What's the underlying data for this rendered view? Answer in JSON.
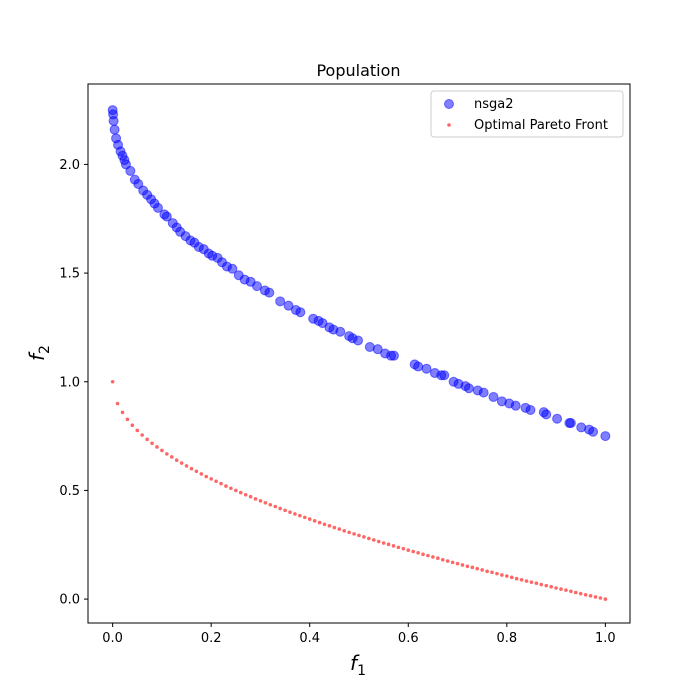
{
  "chart_data": {
    "type": "scatter",
    "title": "Population",
    "xlabel": "f",
    "xlabel_sub": "1",
    "ylabel": "f",
    "ylabel_sub": "2",
    "xlim": [
      -0.05,
      1.05
    ],
    "ylim": [
      -0.11,
      2.37
    ],
    "xticks": [
      0.0,
      0.2,
      0.4,
      0.6,
      0.8,
      1.0
    ],
    "xtick_labels": [
      "0.0",
      "0.2",
      "0.4",
      "0.6",
      "0.8",
      "1.0"
    ],
    "yticks": [
      0.0,
      0.5,
      1.0,
      1.5,
      2.0
    ],
    "ytick_labels": [
      "0.0",
      "0.5",
      "1.0",
      "1.5",
      "2.0"
    ],
    "grid": false,
    "legend_position": "top-right",
    "series": [
      {
        "name": "nsga2",
        "color": "#0000ff",
        "alpha": 0.5,
        "x": [
          0.0,
          0.001,
          0.002,
          0.004,
          0.007,
          0.011,
          0.016,
          0.02,
          0.024,
          0.027,
          0.036,
          0.045,
          0.052,
          0.062,
          0.07,
          0.078,
          0.085,
          0.092,
          0.105,
          0.11,
          0.122,
          0.13,
          0.137,
          0.148,
          0.158,
          0.166,
          0.175,
          0.185,
          0.195,
          0.202,
          0.213,
          0.222,
          0.232,
          0.243,
          0.256,
          0.268,
          0.28,
          0.293,
          0.309,
          0.318,
          0.34,
          0.357,
          0.372,
          0.381,
          0.407,
          0.418,
          0.426,
          0.44,
          0.448,
          0.462,
          0.48,
          0.487,
          0.498,
          0.522,
          0.538,
          0.553,
          0.565,
          0.571,
          0.613,
          0.62,
          0.637,
          0.654,
          0.667,
          0.673,
          0.692,
          0.702,
          0.716,
          0.723,
          0.741,
          0.753,
          0.773,
          0.79,
          0.805,
          0.818,
          0.838,
          0.848,
          0.875,
          0.88,
          0.902,
          0.927,
          0.93,
          0.951,
          0.967,
          0.975,
          1.0
        ],
        "y": [
          2.25,
          2.23,
          2.2,
          2.16,
          2.12,
          2.09,
          2.06,
          2.04,
          2.02,
          2.0,
          1.97,
          1.93,
          1.91,
          1.88,
          1.86,
          1.84,
          1.82,
          1.8,
          1.77,
          1.76,
          1.73,
          1.71,
          1.69,
          1.67,
          1.65,
          1.64,
          1.62,
          1.61,
          1.59,
          1.58,
          1.57,
          1.55,
          1.53,
          1.52,
          1.49,
          1.47,
          1.46,
          1.44,
          1.42,
          1.41,
          1.37,
          1.35,
          1.33,
          1.32,
          1.29,
          1.28,
          1.27,
          1.25,
          1.24,
          1.23,
          1.21,
          1.2,
          1.19,
          1.16,
          1.15,
          1.13,
          1.12,
          1.12,
          1.08,
          1.07,
          1.06,
          1.04,
          1.03,
          1.03,
          1.0,
          0.99,
          0.98,
          0.97,
          0.96,
          0.95,
          0.93,
          0.91,
          0.9,
          0.89,
          0.88,
          0.87,
          0.86,
          0.85,
          0.83,
          0.81,
          0.81,
          0.79,
          0.78,
          0.77,
          0.75
        ]
      },
      {
        "name": "Optimal Pareto Front",
        "color": "#ff0000",
        "alpha": 0.6,
        "x": [
          0.0,
          0.01,
          0.02,
          0.03,
          0.04,
          0.05,
          0.06,
          0.07,
          0.08,
          0.09,
          0.1,
          0.11,
          0.12,
          0.13,
          0.14,
          0.15,
          0.16,
          0.17,
          0.18,
          0.19,
          0.2,
          0.21,
          0.22,
          0.23,
          0.24,
          0.25,
          0.26,
          0.27,
          0.28,
          0.29,
          0.3,
          0.31,
          0.32,
          0.33,
          0.34,
          0.35,
          0.36,
          0.37,
          0.38,
          0.39,
          0.4,
          0.41,
          0.42,
          0.43,
          0.44,
          0.45,
          0.46,
          0.47,
          0.48,
          0.49,
          0.5,
          0.51,
          0.52,
          0.53,
          0.54,
          0.55,
          0.56,
          0.57,
          0.58,
          0.59,
          0.6,
          0.61,
          0.62,
          0.63,
          0.64,
          0.65,
          0.66,
          0.67,
          0.68,
          0.69,
          0.7,
          0.71,
          0.72,
          0.73,
          0.74,
          0.75,
          0.76,
          0.77,
          0.78,
          0.79,
          0.8,
          0.81,
          0.82,
          0.83,
          0.84,
          0.85,
          0.86,
          0.87,
          0.88,
          0.89,
          0.9,
          0.91,
          0.92,
          0.93,
          0.94,
          0.95,
          0.96,
          0.97,
          0.98,
          0.99,
          1.0
        ],
        "y": [
          1.0,
          0.9,
          0.859,
          0.827,
          0.8,
          0.776,
          0.755,
          0.735,
          0.717,
          0.7,
          0.684,
          0.668,
          0.654,
          0.639,
          0.626,
          0.613,
          0.6,
          0.588,
          0.576,
          0.564,
          0.553,
          0.542,
          0.531,
          0.52,
          0.51,
          0.5,
          0.49,
          0.48,
          0.471,
          0.461,
          0.452,
          0.443,
          0.434,
          0.426,
          0.417,
          0.408,
          0.4,
          0.392,
          0.384,
          0.376,
          0.368,
          0.36,
          0.352,
          0.344,
          0.337,
          0.329,
          0.322,
          0.314,
          0.307,
          0.3,
          0.293,
          0.286,
          0.279,
          0.272,
          0.265,
          0.258,
          0.252,
          0.245,
          0.238,
          0.232,
          0.225,
          0.219,
          0.213,
          0.206,
          0.2,
          0.194,
          0.188,
          0.181,
          0.175,
          0.169,
          0.163,
          0.157,
          0.151,
          0.146,
          0.14,
          0.134,
          0.128,
          0.123,
          0.117,
          0.111,
          0.106,
          0.1,
          0.094,
          0.089,
          0.083,
          0.078,
          0.073,
          0.067,
          0.062,
          0.057,
          0.051,
          0.046,
          0.041,
          0.036,
          0.03,
          0.025,
          0.02,
          0.015,
          0.01,
          0.005,
          0.0
        ]
      }
    ]
  }
}
